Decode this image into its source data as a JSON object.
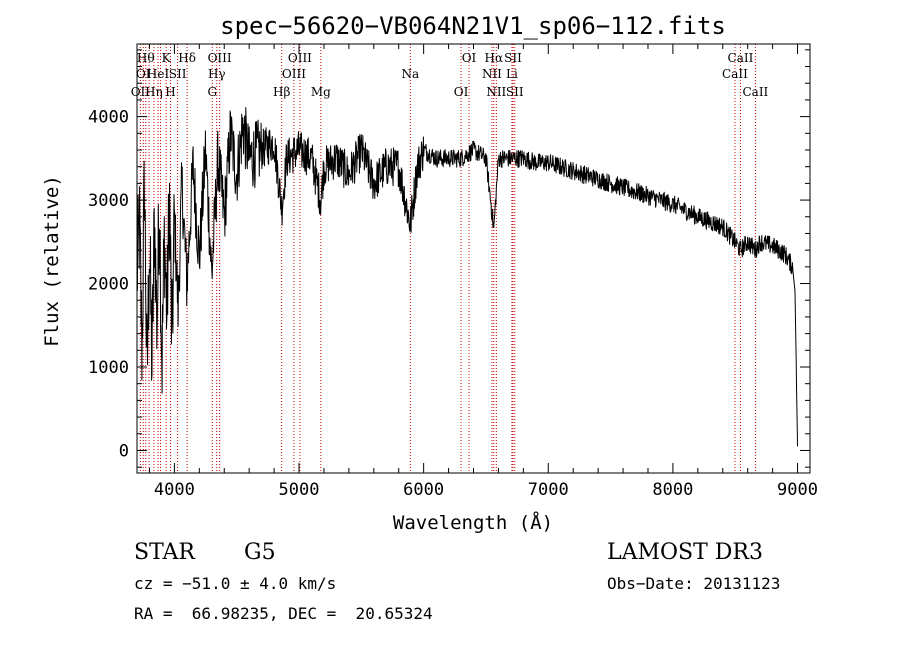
{
  "chart_data": {
    "type": "line",
    "title": "spec−56620−VB064N21V1_sp06−112.fits",
    "xlabel": "Wavelength (Å)",
    "ylabel": "Flux (relative)",
    "xlim": [
      3700,
      9100
    ],
    "ylim": [
      -270,
      4870
    ],
    "xticks": [
      4000,
      5000,
      6000,
      7000,
      8000,
      9000
    ],
    "xtick_labels": [
      "4000",
      "5000",
      "6000",
      "7000",
      "8000",
      "9000"
    ],
    "yticks": [
      0,
      1000,
      2000,
      3000,
      4000
    ],
    "ytick_labels": [
      "0",
      "1000",
      "2000",
      "3000",
      "4000"
    ],
    "series": [
      {
        "name": "flux",
        "x": [
          3700,
          3720,
          3740,
          3760,
          3780,
          3800,
          3820,
          3840,
          3860,
          3880,
          3900,
          3920,
          3940,
          3960,
          3980,
          4000,
          4030,
          4060,
          4100,
          4150,
          4200,
          4250,
          4300,
          4350,
          4400,
          4450,
          4500,
          4550,
          4600,
          4700,
          4800,
          4862,
          4900,
          5000,
          5100,
          5175,
          5200,
          5300,
          5400,
          5500,
          5600,
          5700,
          5800,
          5893,
          5950,
          6000,
          6100,
          6200,
          6300,
          6400,
          6500,
          6563,
          6600,
          6700,
          6800,
          6900,
          7000,
          7200,
          7400,
          7600,
          7800,
          8000,
          8200,
          8400,
          8498,
          8542,
          8600,
          8662,
          8700,
          8800,
          8900,
          8960,
          8980,
          9000
        ],
        "y": [
          2100,
          2700,
          1200,
          3300,
          800,
          2500,
          1000,
          2800,
          1500,
          3000,
          1000,
          2600,
          1600,
          3100,
          1200,
          2800,
          1700,
          3200,
          2000,
          3400,
          2300,
          3600,
          2100,
          3500,
          2800,
          3800,
          3300,
          3900,
          3500,
          3600,
          3700,
          2900,
          3500,
          3600,
          3500,
          3000,
          3400,
          3500,
          3300,
          3600,
          3200,
          3400,
          3400,
          2700,
          3400,
          3600,
          3500,
          3500,
          3500,
          3600,
          3500,
          2650,
          3500,
          3500,
          3500,
          3450,
          3450,
          3350,
          3250,
          3150,
          3050,
          2950,
          2800,
          2680,
          2500,
          2400,
          2500,
          2400,
          2500,
          2450,
          2350,
          2200,
          1900,
          50
        ]
      }
    ],
    "lines": [
      {
        "x": 3727,
        "label": "OII",
        "row": 3
      },
      {
        "x": 3750,
        "label": "OI",
        "row": 2
      },
      {
        "x": 3770,
        "label": "Hθ",
        "row": 1
      },
      {
        "x": 3797,
        "label": "",
        "row": 0
      },
      {
        "x": 3835,
        "label": "Hη",
        "row": 3
      },
      {
        "x": 3869,
        "label": "HeI",
        "row": 2
      },
      {
        "x": 3889,
        "label": "",
        "row": 0
      },
      {
        "x": 3934,
        "label": "K",
        "row": 1
      },
      {
        "x": 3969,
        "label": "H",
        "row": 3
      },
      {
        "x": 4026,
        "label": "SII",
        "row": 2
      },
      {
        "x": 4102,
        "label": "Hδ",
        "row": 1
      },
      {
        "x": 4304,
        "label": "G",
        "row": 3
      },
      {
        "x": 4340,
        "label": "Hγ",
        "row": 2
      },
      {
        "x": 4363,
        "label": "OIII",
        "row": 1
      },
      {
        "x": 4861,
        "label": "Hβ",
        "row": 3
      },
      {
        "x": 4959,
        "label": "OIII",
        "row": 2
      },
      {
        "x": 5007,
        "label": "OIII",
        "row": 1
      },
      {
        "x": 5175,
        "label": "Mg",
        "row": 3
      },
      {
        "x": 5893,
        "label": "Na",
        "row": 2
      },
      {
        "x": 6300,
        "label": "OI",
        "row": 3
      },
      {
        "x": 6364,
        "label": "OI",
        "row": 1
      },
      {
        "x": 6548,
        "label": "NII",
        "row": 2
      },
      {
        "x": 6563,
        "label": "Hα",
        "row": 1
      },
      {
        "x": 6583,
        "label": "NII",
        "row": 3
      },
      {
        "x": 6708,
        "label": "Li",
        "row": 2
      },
      {
        "x": 6717,
        "label": "SII",
        "row": 1
      },
      {
        "x": 6731,
        "label": "SII",
        "row": 3
      },
      {
        "x": 8498,
        "label": "CaII",
        "row": 2
      },
      {
        "x": 8542,
        "label": "CaII",
        "row": 1
      },
      {
        "x": 8662,
        "label": "CaII",
        "row": 3
      }
    ],
    "line_color": "#cc0000",
    "data_color": "#000000"
  },
  "info": {
    "object_class": "STAR",
    "subclass": "G5",
    "cz": "cz = −51.0 ± 4.0 km/s",
    "coords": "RA =  66.98235, DEC =  20.65324",
    "survey": "LAMOST DR3",
    "obs_date": "Obs−Date: 20131123"
  }
}
